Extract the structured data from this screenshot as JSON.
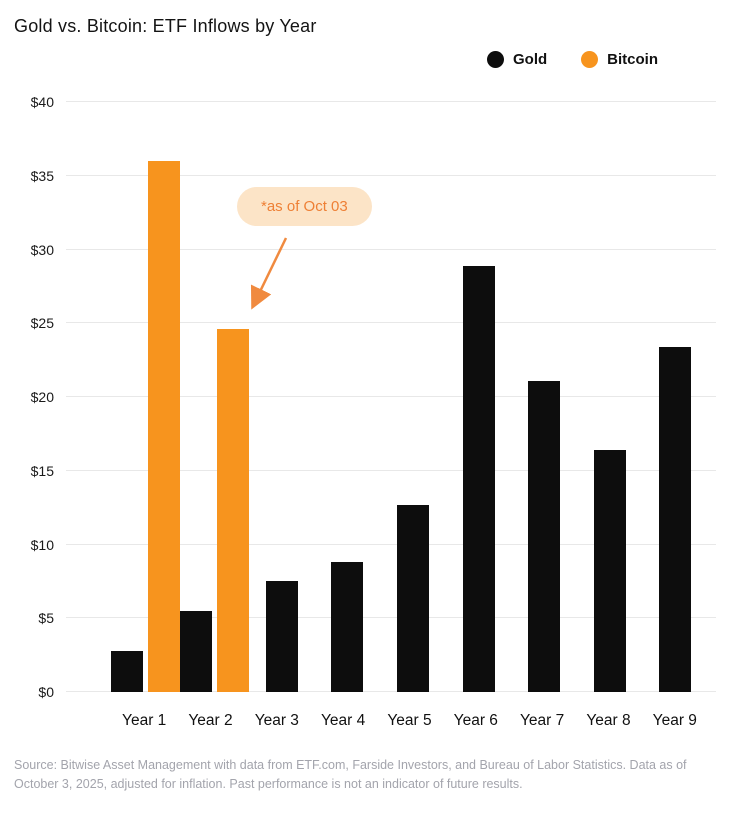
{
  "title": "Gold vs. Bitcoin: ETF Inflows by Year",
  "legend": {
    "items": [
      {
        "label": "Gold",
        "color": "#0d0d0d"
      },
      {
        "label": "Bitcoin",
        "color": "#F7941E"
      }
    ]
  },
  "annotation": {
    "text": "*as of Oct 03",
    "target": "Year 2 Bitcoin bar",
    "bubble_color": "#FCE4C7",
    "text_color": "#EE8036",
    "arrow_color": "#F08A3F"
  },
  "footer": {
    "text": "Source: Bitwise Asset Management with data from ETF.com, Farside Investors, and Bureau of Labor Statistics. Data as of October 3, 2025, adjusted for inflation. Past performance is not an indicator of future results."
  },
  "chart_data": {
    "type": "bar",
    "title": "Gold vs. Bitcoin: ETF Inflows by Year",
    "categories": [
      "Year 1",
      "Year 2",
      "Year 3",
      "Year 4",
      "Year 5",
      "Year 6",
      "Year 7",
      "Year 8",
      "Year 9"
    ],
    "series": [
      {
        "name": "Gold",
        "color": "#0d0d0d",
        "values": [
          2.8,
          5.5,
          7.5,
          8.8,
          12.7,
          28.9,
          21.1,
          16.4,
          23.4
        ]
      },
      {
        "name": "Bitcoin",
        "color": "#F7941E",
        "values": [
          36.0,
          24.6,
          null,
          null,
          null,
          null,
          null,
          null,
          null
        ]
      }
    ],
    "yticks": [
      {
        "value": 0,
        "label": "$0"
      },
      {
        "value": 5,
        "label": "$5"
      },
      {
        "value": 10,
        "label": "$10"
      },
      {
        "value": 15,
        "label": "$15"
      },
      {
        "value": 20,
        "label": "$20"
      },
      {
        "value": 25,
        "label": "$25"
      },
      {
        "value": 30,
        "label": "$30"
      },
      {
        "value": 35,
        "label": "$35"
      },
      {
        "value": 40,
        "label": "$40"
      }
    ],
    "ylim": [
      0,
      40
    ],
    "xlabel": "",
    "ylabel": "",
    "grid": true,
    "legend_position": "top-right",
    "units": "USD billions (implied by $ ticks)"
  }
}
